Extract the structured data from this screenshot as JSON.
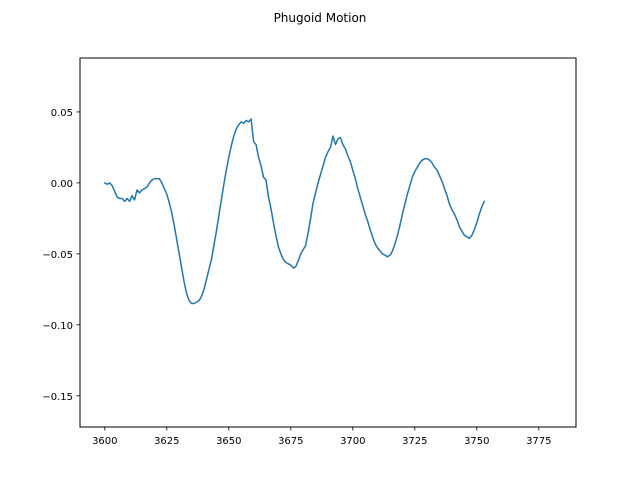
{
  "chart_data": {
    "type": "line",
    "title": "Phugoid Motion",
    "xlabel": "",
    "ylabel": "",
    "xlim": [
      3590,
      3790
    ],
    "ylim": [
      -0.172,
      0.088
    ],
    "grid": false,
    "legend": "none",
    "x_ticks": [
      3600,
      3625,
      3650,
      3675,
      3700,
      3725,
      3750,
      3775
    ],
    "x_tick_labels": [
      "3600",
      "3625",
      "3650",
      "3675",
      "3700",
      "3725",
      "3750",
      "3775"
    ],
    "y_ticks": [
      0.05,
      0.0,
      -0.05,
      -0.1,
      -0.15
    ],
    "y_tick_labels": [
      "0.05",
      "0.00",
      "−0.05",
      "−0.10",
      "−0.15"
    ],
    "series": [
      {
        "color": "#1f77b4",
        "points": [
          [
            3600,
            0.0
          ],
          [
            3601,
            -0.001
          ],
          [
            3602,
            0.0
          ],
          [
            3603,
            -0.002
          ],
          [
            3604,
            -0.006
          ],
          [
            3605,
            -0.01
          ],
          [
            3606,
            -0.011
          ],
          [
            3607,
            -0.011
          ],
          [
            3608,
            -0.013
          ],
          [
            3609,
            -0.011
          ],
          [
            3610,
            -0.013
          ],
          [
            3611,
            -0.009
          ],
          [
            3612,
            -0.012
          ],
          [
            3613,
            -0.005
          ],
          [
            3614,
            -0.007
          ],
          [
            3615,
            -0.005
          ],
          [
            3616,
            -0.004
          ],
          [
            3617,
            -0.003
          ],
          [
            3618,
            0.0
          ],
          [
            3619,
            0.002
          ],
          [
            3620,
            0.003
          ],
          [
            3621,
            0.003
          ],
          [
            3622,
            0.003
          ],
          [
            3623,
            0.0
          ],
          [
            3624,
            -0.004
          ],
          [
            3625,
            -0.008
          ],
          [
            3626,
            -0.014
          ],
          [
            3627,
            -0.021
          ],
          [
            3628,
            -0.03
          ],
          [
            3629,
            -0.04
          ],
          [
            3630,
            -0.05
          ],
          [
            3631,
            -0.06
          ],
          [
            3632,
            -0.07
          ],
          [
            3633,
            -0.078
          ],
          [
            3634,
            -0.083
          ],
          [
            3635,
            -0.085
          ],
          [
            3636,
            -0.085
          ],
          [
            3637,
            -0.084
          ],
          [
            3638,
            -0.083
          ],
          [
            3639,
            -0.08
          ],
          [
            3640,
            -0.075
          ],
          [
            3641,
            -0.068
          ],
          [
            3642,
            -0.061
          ],
          [
            3643,
            -0.054
          ],
          [
            3644,
            -0.044
          ],
          [
            3645,
            -0.034
          ],
          [
            3646,
            -0.023
          ],
          [
            3647,
            -0.012
          ],
          [
            3648,
            -0.001
          ],
          [
            3649,
            0.009
          ],
          [
            3650,
            0.018
          ],
          [
            3651,
            0.026
          ],
          [
            3652,
            0.033
          ],
          [
            3653,
            0.038
          ],
          [
            3654,
            0.041
          ],
          [
            3655,
            0.043
          ],
          [
            3656,
            0.042
          ],
          [
            3657,
            0.044
          ],
          [
            3658,
            0.043
          ],
          [
            3659,
            0.045
          ],
          [
            3660,
            0.029
          ],
          [
            3661,
            0.027
          ],
          [
            3662,
            0.018
          ],
          [
            3663,
            0.012
          ],
          [
            3664,
            0.004
          ],
          [
            3665,
            0.002
          ],
          [
            3666,
            -0.01
          ],
          [
            3667,
            -0.018
          ],
          [
            3668,
            -0.028
          ],
          [
            3669,
            -0.037
          ],
          [
            3670,
            -0.045
          ],
          [
            3671,
            -0.05
          ],
          [
            3672,
            -0.054
          ],
          [
            3673,
            -0.056
          ],
          [
            3674,
            -0.057
          ],
          [
            3675,
            -0.058
          ],
          [
            3676,
            -0.06
          ],
          [
            3677,
            -0.059
          ],
          [
            3678,
            -0.055
          ],
          [
            3679,
            -0.05
          ],
          [
            3680,
            -0.047
          ],
          [
            3681,
            -0.044
          ],
          [
            3682,
            -0.035
          ],
          [
            3683,
            -0.025
          ],
          [
            3684,
            -0.014
          ],
          [
            3685,
            -0.007
          ],
          [
            3686,
            0.0
          ],
          [
            3687,
            0.006
          ],
          [
            3688,
            0.012
          ],
          [
            3689,
            0.018
          ],
          [
            3690,
            0.022
          ],
          [
            3691,
            0.025
          ],
          [
            3692,
            0.033
          ],
          [
            3693,
            0.027
          ],
          [
            3694,
            0.031
          ],
          [
            3695,
            0.032
          ],
          [
            3696,
            0.027
          ],
          [
            3697,
            0.024
          ],
          [
            3698,
            0.019
          ],
          [
            3699,
            0.015
          ],
          [
            3700,
            0.009
          ],
          [
            3701,
            0.003
          ],
          [
            3702,
            -0.004
          ],
          [
            3703,
            -0.01
          ],
          [
            3704,
            -0.016
          ],
          [
            3705,
            -0.022
          ],
          [
            3706,
            -0.027
          ],
          [
            3707,
            -0.033
          ],
          [
            3708,
            -0.038
          ],
          [
            3709,
            -0.043
          ],
          [
            3710,
            -0.046
          ],
          [
            3711,
            -0.048
          ],
          [
            3712,
            -0.05
          ],
          [
            3713,
            -0.051
          ],
          [
            3714,
            -0.052
          ],
          [
            3715,
            -0.051
          ],
          [
            3716,
            -0.048
          ],
          [
            3717,
            -0.043
          ],
          [
            3718,
            -0.037
          ],
          [
            3719,
            -0.03
          ],
          [
            3720,
            -0.022
          ],
          [
            3721,
            -0.015
          ],
          [
            3722,
            -0.008
          ],
          [
            3723,
            -0.002
          ],
          [
            3724,
            0.004
          ],
          [
            3725,
            0.008
          ],
          [
            3726,
            0.011
          ],
          [
            3727,
            0.014
          ],
          [
            3728,
            0.016
          ],
          [
            3729,
            0.017
          ],
          [
            3730,
            0.017
          ],
          [
            3731,
            0.016
          ],
          [
            3732,
            0.014
          ],
          [
            3733,
            0.011
          ],
          [
            3734,
            0.009
          ],
          [
            3735,
            0.005
          ],
          [
            3736,
            0.001
          ],
          [
            3737,
            -0.004
          ],
          [
            3738,
            -0.009
          ],
          [
            3739,
            -0.015
          ],
          [
            3740,
            -0.019
          ],
          [
            3741,
            -0.022
          ],
          [
            3742,
            -0.026
          ],
          [
            3743,
            -0.031
          ],
          [
            3744,
            -0.034
          ],
          [
            3745,
            -0.037
          ],
          [
            3746,
            -0.038
          ],
          [
            3747,
            -0.039
          ],
          [
            3748,
            -0.037
          ],
          [
            3749,
            -0.033
          ],
          [
            3750,
            -0.028
          ],
          [
            3751,
            -0.022
          ],
          [
            3752,
            -0.017
          ],
          [
            3753,
            -0.013
          ]
        ]
      }
    ]
  }
}
